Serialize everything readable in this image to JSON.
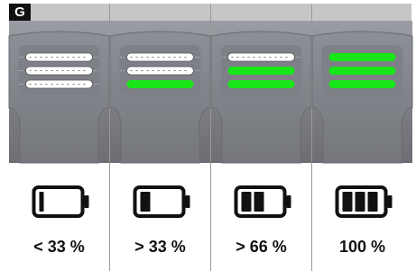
{
  "badge": "G",
  "panels": [
    {
      "label": "< 33 %"
    },
    {
      "label": "> 33 %"
    },
    {
      "label": "> 66 %"
    },
    {
      "label": "100 %"
    }
  ]
}
